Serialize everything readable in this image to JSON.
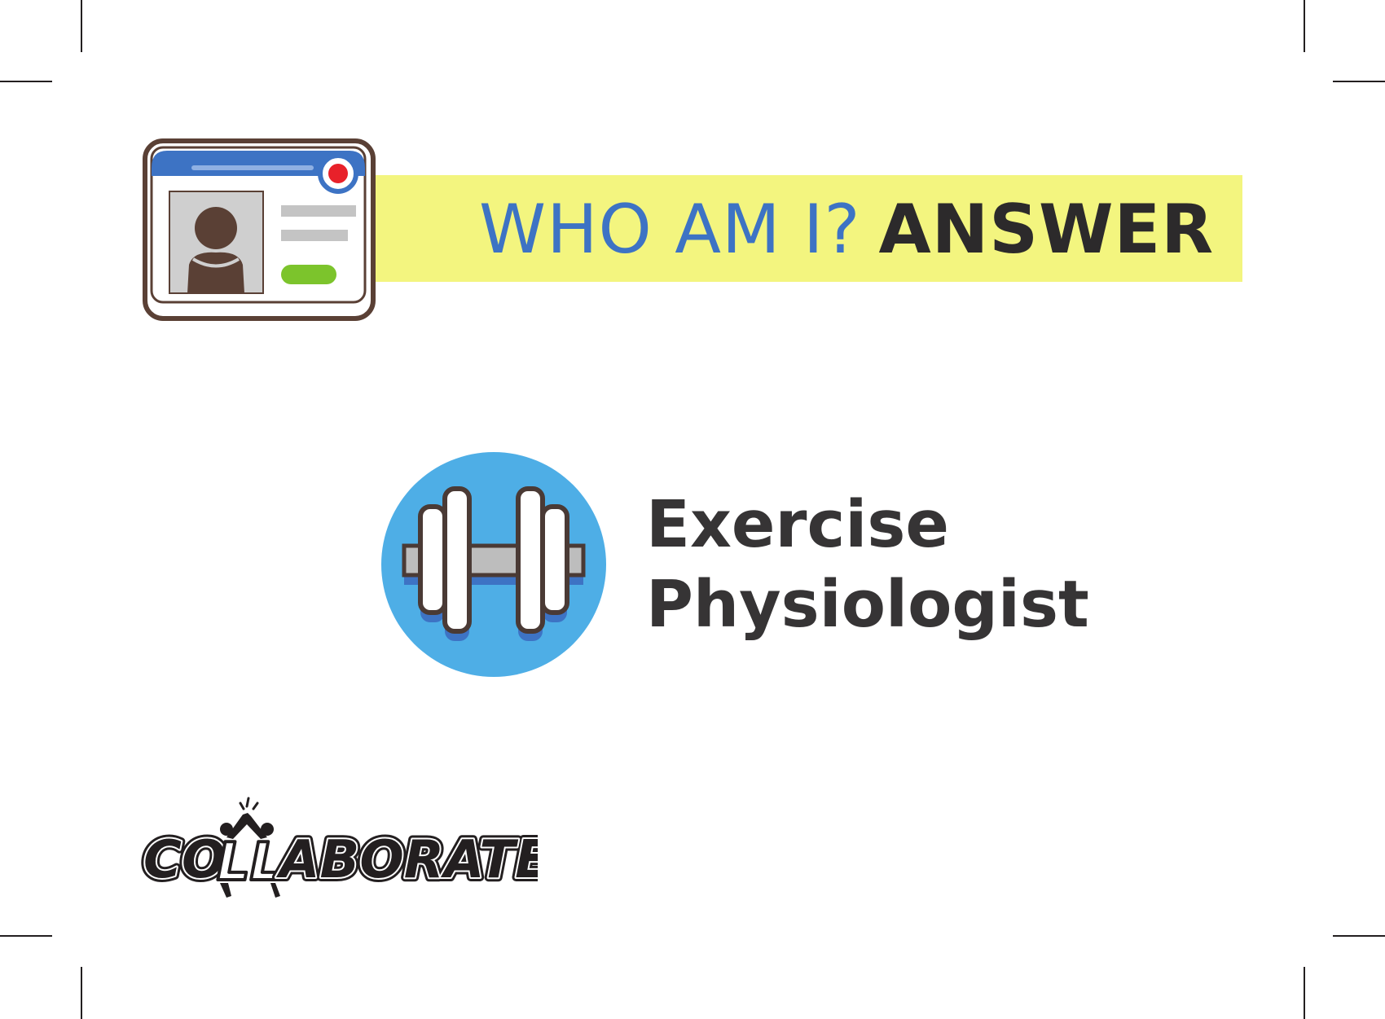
{
  "card": {
    "heading_prefix": "WHO AM I?",
    "heading_emphasis": "ANSWER",
    "answer_line1": "Exercise",
    "answer_line2": "Physiologist"
  },
  "icons": {
    "header_icon": "id-card-icon",
    "answer_icon": "dumbbell-icon"
  },
  "logo": {
    "wordmark": "COLLABORATE"
  },
  "colors": {
    "heading_blue": "#3d73c4",
    "banner_yellow": "#f3f57f",
    "icon_circle_blue": "#4eaee6",
    "text_dark": "#363435",
    "status_green": "#7cc42c",
    "status_red": "#e8212a"
  }
}
